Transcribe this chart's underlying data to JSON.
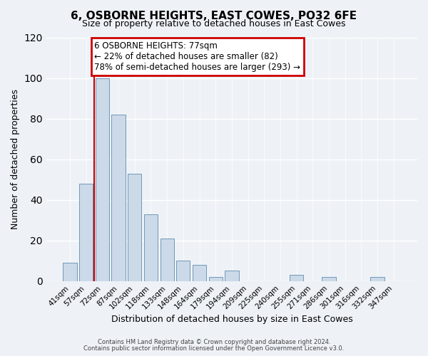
{
  "title": "6, OSBORNE HEIGHTS, EAST COWES, PO32 6FE",
  "subtitle": "Size of property relative to detached houses in East Cowes",
  "xlabel": "Distribution of detached houses by size in East Cowes",
  "ylabel": "Number of detached properties",
  "bar_labels": [
    "41sqm",
    "57sqm",
    "72sqm",
    "87sqm",
    "102sqm",
    "118sqm",
    "133sqm",
    "148sqm",
    "164sqm",
    "179sqm",
    "194sqm",
    "209sqm",
    "225sqm",
    "240sqm",
    "255sqm",
    "271sqm",
    "286sqm",
    "301sqm",
    "316sqm",
    "332sqm",
    "347sqm"
  ],
  "bar_values": [
    9,
    48,
    100,
    82,
    53,
    33,
    21,
    10,
    8,
    2,
    5,
    0,
    0,
    0,
    3,
    0,
    2,
    0,
    0,
    2,
    0
  ],
  "bar_color": "#ccd9e8",
  "bar_edge_color": "#7098b8",
  "vline_index": 2,
  "vline_color": "#cc0000",
  "ylim": [
    0,
    120
  ],
  "yticks": [
    0,
    20,
    40,
    60,
    80,
    100,
    120
  ],
  "annotation_title": "6 OSBORNE HEIGHTS: 77sqm",
  "annotation_line1": "← 22% of detached houses are smaller (82)",
  "annotation_line2": "78% of semi-detached houses are larger (293) →",
  "annotation_box_color": "#cc0000",
  "footer1": "Contains HM Land Registry data © Crown copyright and database right 2024.",
  "footer2": "Contains public sector information licensed under the Open Government Licence v3.0.",
  "background_color": "#eef2f7",
  "plot_bg_color": "#eef2f7",
  "grid_color": "#ffffff",
  "title_fontsize": 11,
  "subtitle_fontsize": 9
}
